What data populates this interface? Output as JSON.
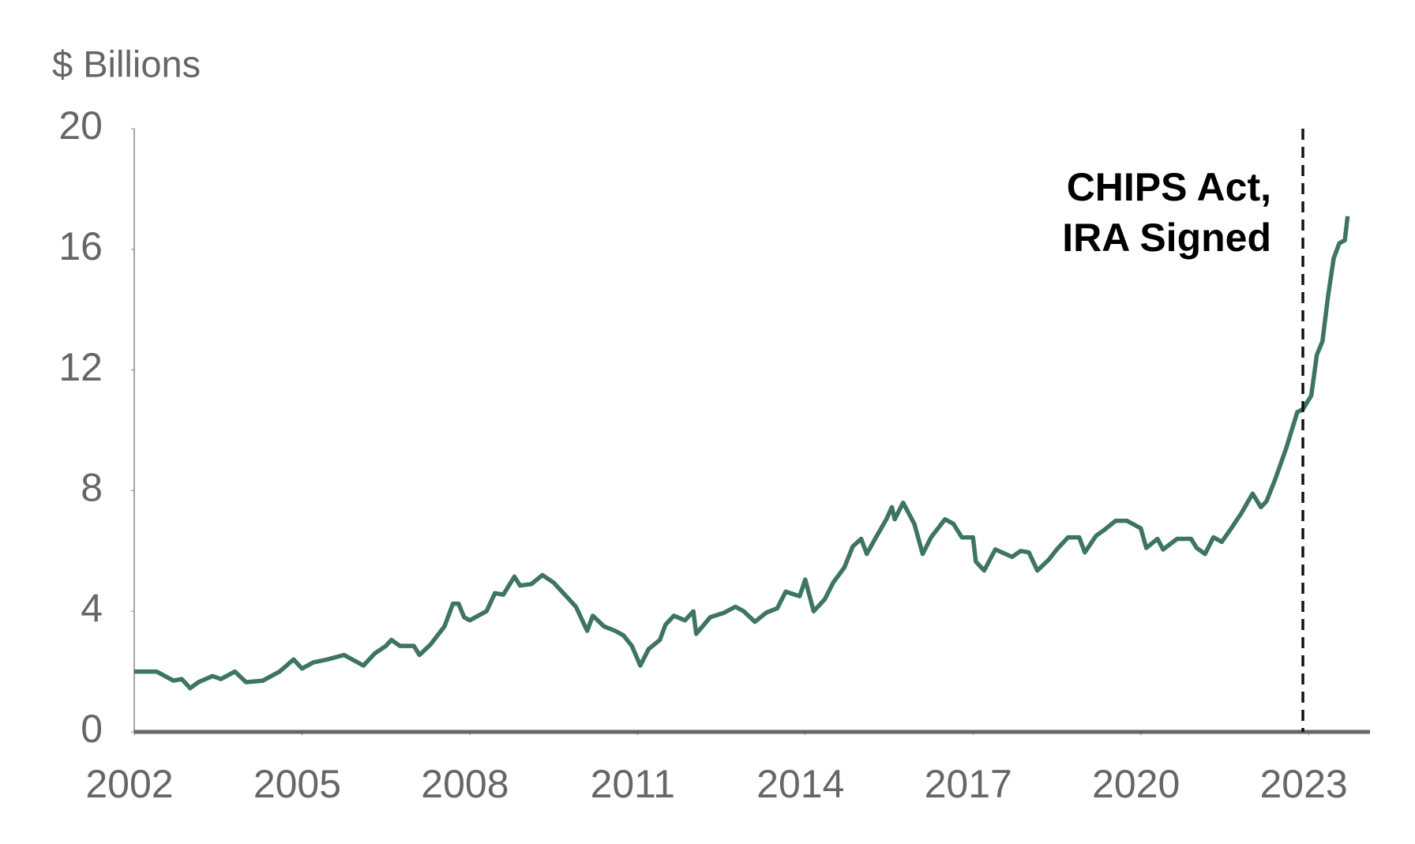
{
  "chart_data": {
    "type": "line",
    "ylabel": "$ Billions",
    "color": "#3d7560",
    "x": [
      2002.0,
      2002.4,
      2002.7,
      2002.85,
      2003.0,
      2003.15,
      2003.4,
      2003.55,
      2003.8,
      2004.0,
      2004.3,
      2004.6,
      2004.85,
      2005.0,
      2005.2,
      2005.45,
      2005.75,
      2006.1,
      2006.3,
      2006.5,
      2006.6,
      2006.75,
      2007.0,
      2007.1,
      2007.3,
      2007.55,
      2007.7,
      2007.8,
      2007.9,
      2008.0,
      2008.3,
      2008.45,
      2008.6,
      2008.8,
      2008.9,
      2009.1,
      2009.3,
      2009.5,
      2009.7,
      2009.9,
      2010.1,
      2010.2,
      2010.4,
      2010.6,
      2010.75,
      2010.9,
      2011.05,
      2011.2,
      2011.4,
      2011.5,
      2011.65,
      2011.85,
      2012.0,
      2012.05,
      2012.3,
      2012.55,
      2012.75,
      2012.9,
      2013.1,
      2013.3,
      2013.5,
      2013.65,
      2013.9,
      2014.0,
      2014.15,
      2014.35,
      2014.5,
      2014.7,
      2014.85,
      2015.0,
      2015.1,
      2015.25,
      2015.45,
      2015.55,
      2015.6,
      2015.75,
      2015.95,
      2016.1,
      2016.25,
      2016.5,
      2016.65,
      2016.8,
      2017.0,
      2017.05,
      2017.2,
      2017.4,
      2017.7,
      2017.85,
      2018.0,
      2018.15,
      2018.35,
      2018.5,
      2018.7,
      2018.9,
      2019.0,
      2019.2,
      2019.35,
      2019.55,
      2019.75,
      2020.0,
      2020.1,
      2020.3,
      2020.4,
      2020.65,
      2020.9,
      2021.0,
      2021.15,
      2021.3,
      2021.45,
      2021.6,
      2021.8,
      2022.0,
      2022.15,
      2022.25,
      2022.4,
      2022.6,
      2022.8,
      2022.9,
      2023.05,
      2023.15,
      2023.25,
      2023.35,
      2023.45,
      2023.55,
      2023.65,
      2023.7
    ],
    "values": [
      2.0,
      2.0,
      1.7,
      1.75,
      1.45,
      1.65,
      1.85,
      1.75,
      2.0,
      1.65,
      1.7,
      2.0,
      2.4,
      2.1,
      2.3,
      2.4,
      2.55,
      2.2,
      2.6,
      2.85,
      3.05,
      2.85,
      2.85,
      2.55,
      2.9,
      3.5,
      4.25,
      4.25,
      3.8,
      3.7,
      4.0,
      4.6,
      4.55,
      5.15,
      4.85,
      4.9,
      5.2,
      4.95,
      4.55,
      4.15,
      3.35,
      3.85,
      3.5,
      3.35,
      3.2,
      2.85,
      2.2,
      2.75,
      3.05,
      3.55,
      3.85,
      3.7,
      4.0,
      3.25,
      3.8,
      3.95,
      4.15,
      4.0,
      3.65,
      3.95,
      4.1,
      4.65,
      4.5,
      5.05,
      4.0,
      4.4,
      4.95,
      5.45,
      6.15,
      6.4,
      5.9,
      6.4,
      7.05,
      7.45,
      7.05,
      7.6,
      6.9,
      5.9,
      6.45,
      7.05,
      6.9,
      6.45,
      6.45,
      5.65,
      5.35,
      6.05,
      5.8,
      6.0,
      5.95,
      5.35,
      5.7,
      6.05,
      6.45,
      6.45,
      5.95,
      6.5,
      6.7,
      7.0,
      7.0,
      6.75,
      6.1,
      6.4,
      6.05,
      6.4,
      6.4,
      6.1,
      5.9,
      6.45,
      6.3,
      6.7,
      7.25,
      7.9,
      7.45,
      7.65,
      8.35,
      9.4,
      10.6,
      10.7,
      11.15,
      12.5,
      12.95,
      14.45,
      15.7,
      16.2,
      16.3,
      17.1
    ],
    "xlim": [
      2002,
      2024.1
    ],
    "xticks": [
      2002,
      2005,
      2008,
      2011,
      2014,
      2017,
      2020,
      2023
    ],
    "ylim": [
      0,
      20
    ],
    "yticks": [
      0,
      4,
      8,
      12,
      16,
      20
    ],
    "annotation": {
      "text": [
        "CHIPS Act,",
        "IRA Signed"
      ],
      "x": 2022.9
    }
  }
}
